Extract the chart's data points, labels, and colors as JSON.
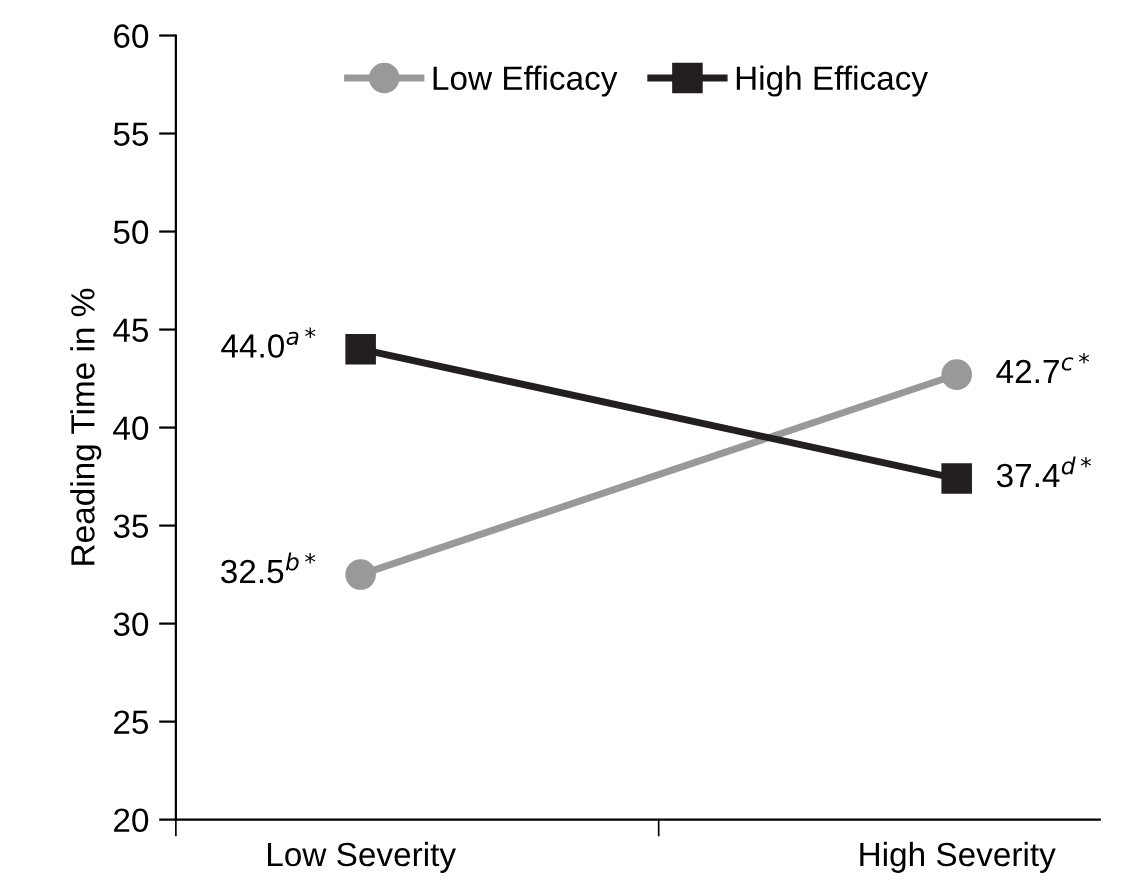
{
  "chart_data": {
    "type": "line",
    "ylabel": "Reading Time in %",
    "categories": [
      "Low Severity",
      "High Severity"
    ],
    "series": [
      {
        "name": "Low Efficacy",
        "color": "#999999",
        "marker": "circle",
        "values": [
          32.5,
          42.7
        ],
        "value_labels": [
          "32.5$^{b*}$",
          "42.7$^{c*}$"
        ]
      },
      {
        "name": "High Efficacy",
        "color": "#231f20",
        "marker": "square",
        "values": [
          44.0,
          37.4
        ],
        "value_labels": [
          "44.0$^{a*}$",
          "37.4$^{d*}$"
        ]
      }
    ],
    "ylim": [
      20,
      60
    ],
    "yticks": [
      20,
      25,
      30,
      35,
      40,
      45,
      50,
      55,
      60
    ],
    "grid": false,
    "legend": "top",
    "line_style": "solid"
  }
}
